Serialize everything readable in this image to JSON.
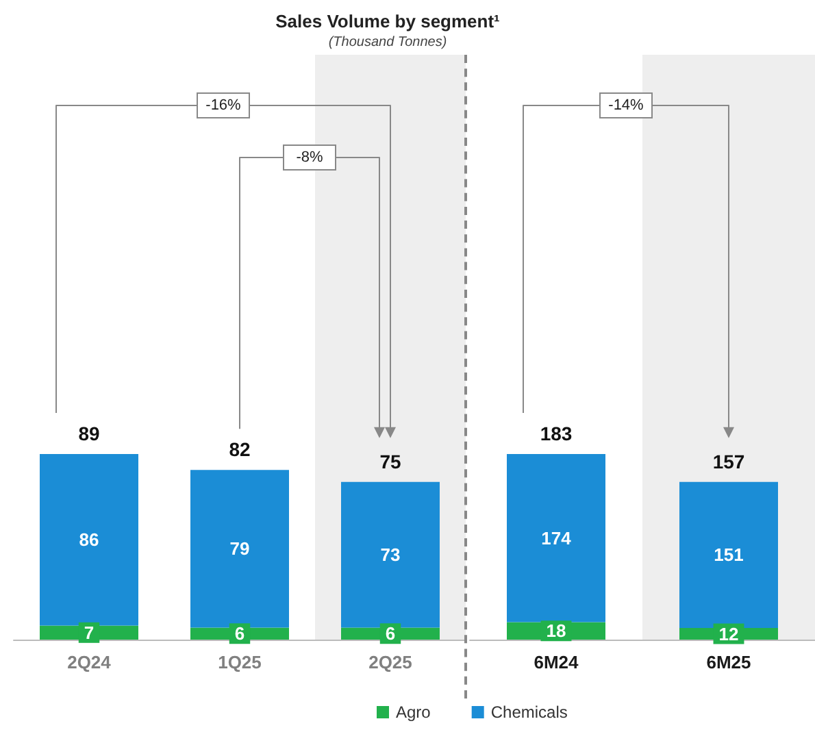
{
  "chart_data": [
    {
      "type": "bar",
      "stacked": true,
      "title": "Sales Volume by segment¹",
      "subtitle": "(Thousand Tonnes)",
      "categories": [
        "2Q24",
        "1Q25",
        "2Q25"
      ],
      "series": [
        {
          "color": "#22b14c",
          "values": [
            7,
            6,
            6
          ]
        },
        {
          "color": "#1b8dd6",
          "values": [
            86,
            79,
            73
          ]
        }
      ],
      "data_labels": true,
      "annotations": [
        "-16%",
        "-8%",
        "89",
        "82",
        "75"
      ],
      "bands": [
        {
          "axis": "x",
          "from": "2Q25",
          "to": "2Q25",
          "color": "#eeeeee"
        }
      ]
    },
    {
      "type": "bar",
      "stacked": true,
      "categories": [
        "6M24",
        "6M25"
      ],
      "series": [
        {
          "name": "Agro",
          "color": "#22b14c",
          "values": [
            18,
            12
          ]
        },
        {
          "name": "Chemicals",
          "color": "#1b8dd6",
          "values": [
            174,
            151
          ]
        }
      ],
      "data_labels": true,
      "annotations": [
        "-14%",
        "183",
        "157"
      ],
      "bands": [
        {
          "axis": "x",
          "from": "6M25",
          "to": "6M25",
          "color": "#eeeeee"
        }
      ],
      "legend": "bottom"
    }
  ]
}
